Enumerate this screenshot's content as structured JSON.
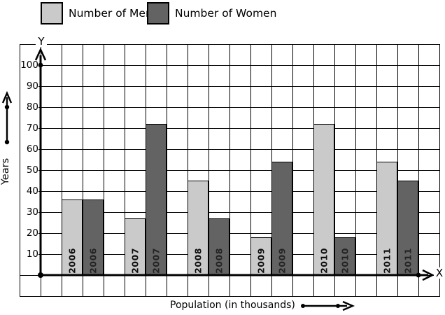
{
  "legend": {
    "men": {
      "label": "Number of Men",
      "color": "#cacaca"
    },
    "women": {
      "label": "Number of Women",
      "color": "#636363"
    }
  },
  "axes": {
    "x_letter": "X",
    "y_letter": "Y"
  },
  "chart_data": {
    "type": "bar",
    "categories": [
      "2006",
      "2007",
      "2008",
      "2009",
      "2010",
      "2011"
    ],
    "series": [
      {
        "name": "Number of Men",
        "color": "#cacaca",
        "values": [
          36,
          27,
          45,
          18,
          72,
          54
        ]
      },
      {
        "name": "Number of Women",
        "color": "#636363",
        "values": [
          36,
          72,
          27,
          54,
          18,
          45
        ]
      }
    ],
    "title": "",
    "xlabel": "Population (in thousands)",
    "ylabel": "Years",
    "ylim": [
      0,
      110
    ],
    "yticks": [
      10,
      20,
      30,
      40,
      50,
      60,
      70,
      80,
      90,
      100
    ],
    "grid": true,
    "legend_position": "top-left",
    "bar_labels": "category-inside-base-rotated"
  }
}
